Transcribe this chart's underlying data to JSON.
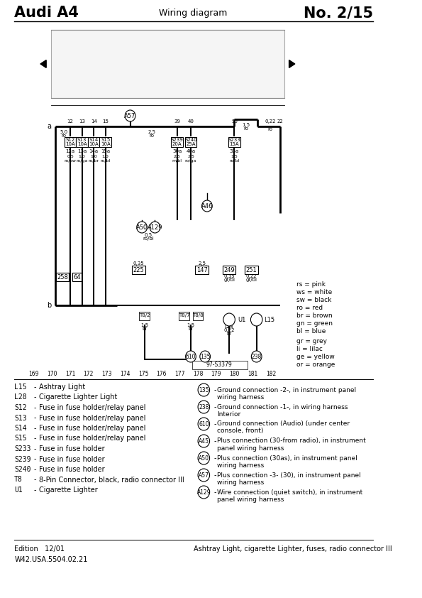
{
  "title_left": "Audi A4",
  "title_center": "Wiring diagram",
  "title_right": "No. 2/15",
  "footer_left": "Edition   12/01\nW42.USA.5504.02.21",
  "footer_right": "Ashtray Light, cigarette Lighter, fuses, radio connector III",
  "bg_color": "#ffffff",
  "left_legend": [
    [
      "L15",
      "Ashtray Light"
    ],
    [
      "L28",
      "Cigarette Lighter Light"
    ],
    [
      "S12",
      "Fuse in fuse holder/relay panel"
    ],
    [
      "S13",
      "Fuse in fuse holder/relay panel"
    ],
    [
      "S14",
      "Fuse in fuse holder/relay panel"
    ],
    [
      "S15",
      "Fuse in fuse holder/relay panel"
    ],
    [
      "S233",
      "Fuse in fuse holder"
    ],
    [
      "S239",
      "Fuse in fuse holder"
    ],
    [
      "S240",
      "Fuse in fuse holder"
    ],
    [
      "T8",
      "8-Pin Connector, black, radio connector III"
    ],
    [
      "U1",
      "Cigarette Lighter"
    ]
  ],
  "right_legend": [
    [
      "135",
      "Ground connection -2-, in instrument panel\nwiring harness"
    ],
    [
      "238",
      "Ground connection -1-, in wiring harness\nInterior"
    ],
    [
      "610",
      "Ground connection (Audio) (under center\nconsole, front)"
    ],
    [
      "A45",
      "Plus connection (30-from radio), in instrument\npanel wiring harness"
    ],
    [
      "A50",
      "Plus connection (30as), in instrument panel\nwiring harness"
    ],
    [
      "A57",
      "Plus connection -3- (30), in instrument panel\nwiring harness"
    ],
    [
      "A129",
      "Wire connection (quiet switch), in instrument\npanel wiring harness"
    ]
  ],
  "color_legend": [
    [
      "rs",
      "pink"
    ],
    [
      "ws",
      "white"
    ],
    [
      "sw",
      "black"
    ],
    [
      "ro",
      "red"
    ],
    [
      "br",
      "brown"
    ],
    [
      "gn",
      "green"
    ],
    [
      "bl",
      "blue"
    ],
    [
      "gr",
      "grey"
    ],
    [
      "li",
      "lilac"
    ],
    [
      "ge",
      "yellow"
    ],
    [
      "or",
      "orange"
    ]
  ]
}
